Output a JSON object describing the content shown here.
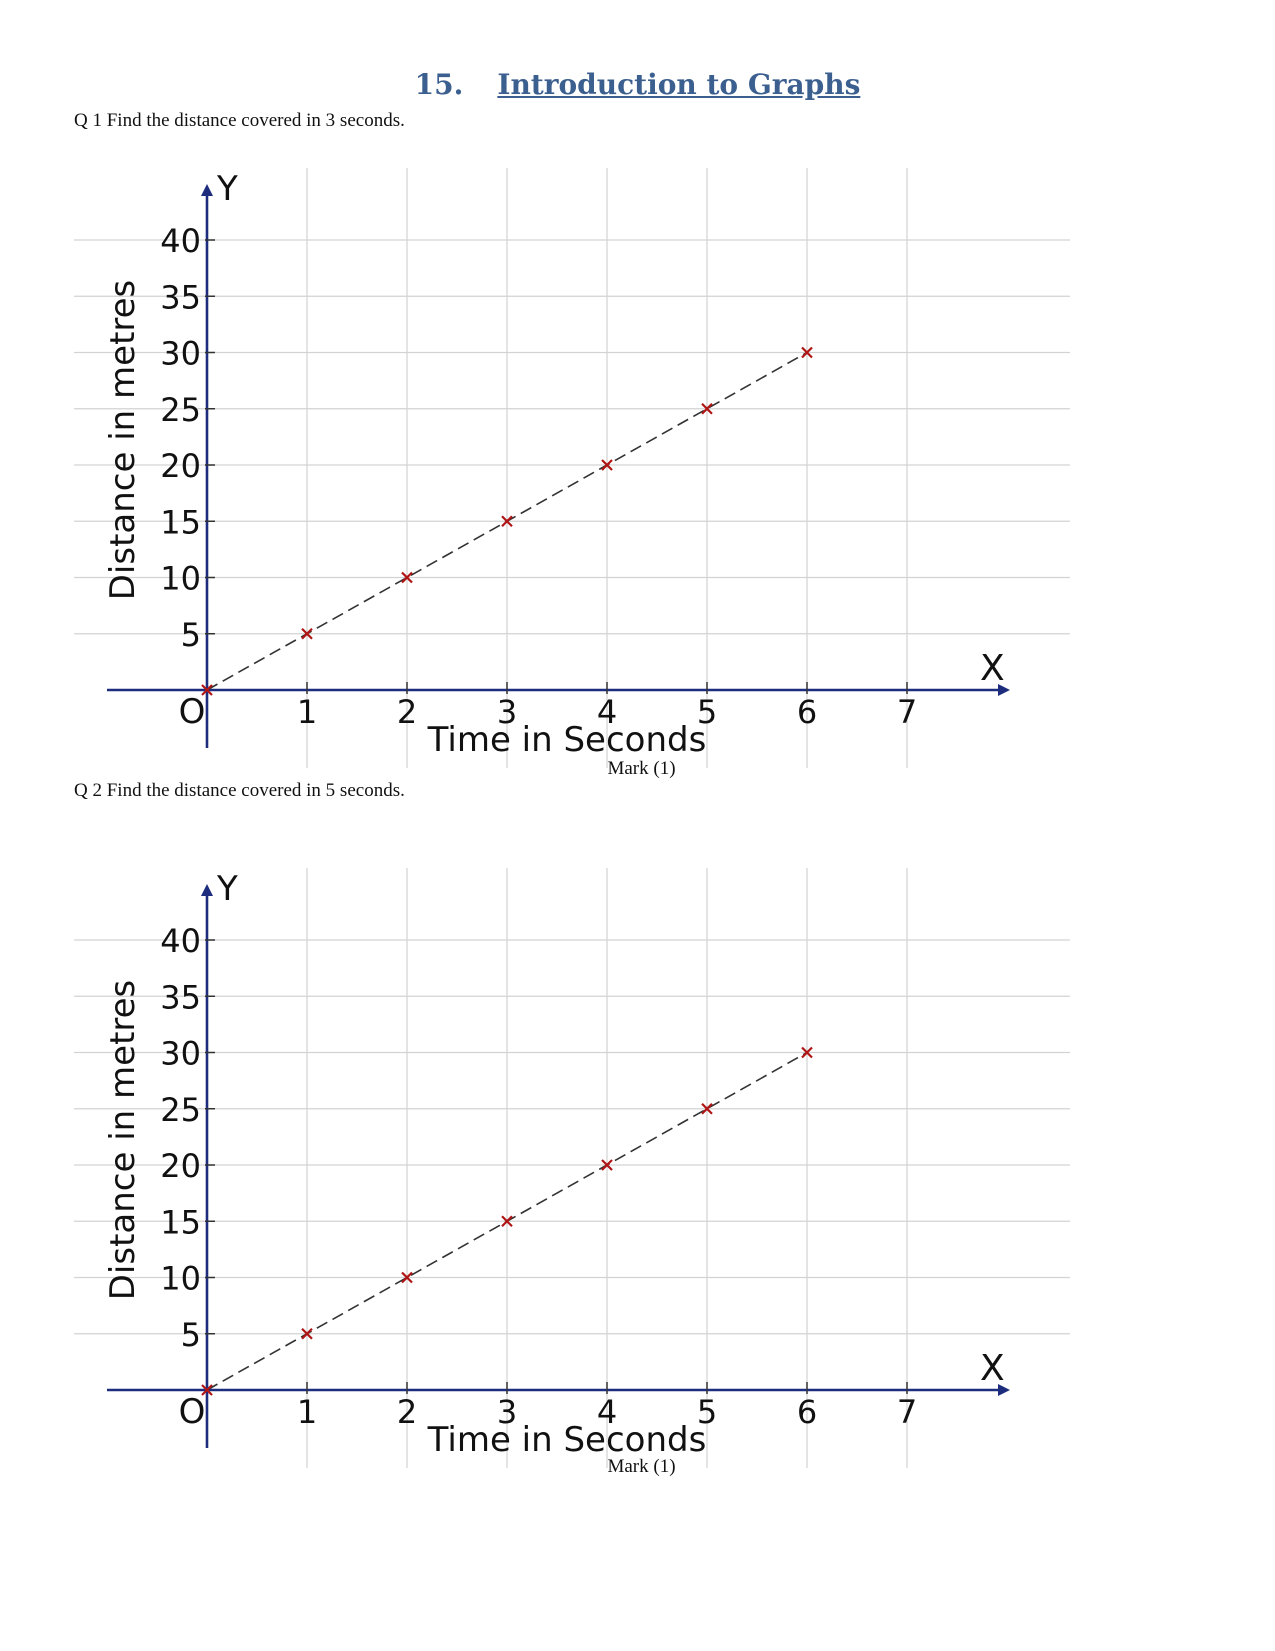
{
  "header": {
    "number": "15.",
    "title": "Introduction to Graphs"
  },
  "questions": [
    {
      "text": "Q 1 Find the distance covered in 3 seconds.",
      "mark": "Mark (1)"
    },
    {
      "text": "Q 2 Find the distance covered in 5 seconds.",
      "mark": "Mark (1)"
    }
  ],
  "chart_data": [
    {
      "type": "line",
      "title": "",
      "xlabel": "Time in Seconds",
      "ylabel": "Distance in metres",
      "x_axis_name": "X",
      "y_axis_name": "Y",
      "origin_label": "O",
      "x_ticks": [
        "1",
        "2",
        "3",
        "4",
        "5",
        "6",
        "7"
      ],
      "y_ticks": [
        "5",
        "10",
        "15",
        "20",
        "25",
        "30",
        "35",
        "40"
      ],
      "xlim": [
        0,
        8
      ],
      "ylim": [
        0,
        40
      ],
      "grid": true,
      "line_style": "dashed",
      "marker_color": "#b01515",
      "x": [
        0,
        1,
        2,
        3,
        4,
        5,
        6
      ],
      "y": [
        0,
        5,
        10,
        15,
        20,
        25,
        30
      ]
    },
    {
      "type": "line",
      "title": "",
      "xlabel": "Time in Seconds",
      "ylabel": "Distance in metres",
      "x_axis_name": "X",
      "y_axis_name": "Y",
      "origin_label": "O",
      "x_ticks": [
        "1",
        "2",
        "3",
        "4",
        "5",
        "6",
        "7"
      ],
      "y_ticks": [
        "5",
        "10",
        "15",
        "20",
        "25",
        "30",
        "35",
        "40"
      ],
      "xlim": [
        0,
        8
      ],
      "ylim": [
        0,
        40
      ],
      "grid": true,
      "line_style": "dashed",
      "marker_color": "#b01515",
      "x": [
        0,
        1,
        2,
        3,
        4,
        5,
        6
      ],
      "y": [
        0,
        5,
        10,
        15,
        20,
        25,
        30
      ]
    }
  ]
}
